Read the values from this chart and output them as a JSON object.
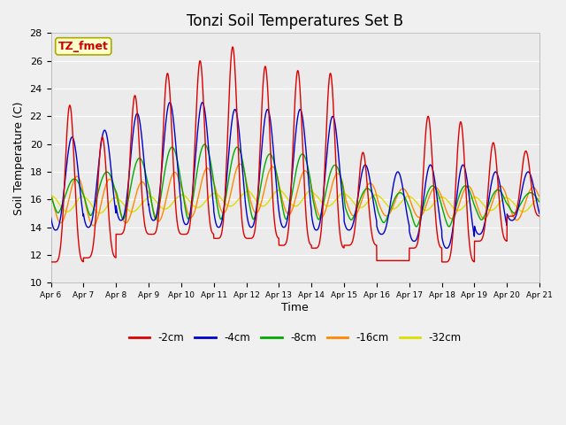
{
  "title": "Tonzi Soil Temperatures Set B",
  "xlabel": "Time",
  "ylabel": "Soil Temperature (C)",
  "ylim": [
    10,
    28
  ],
  "background_color": "#ebebeb",
  "fig_color": "#f0f0f0",
  "annotation_text": "TZ_fmet",
  "annotation_bg": "#ffffcc",
  "annotation_border": "#aaaa00",
  "annotation_text_color": "#cc0000",
  "series_colors": {
    "-2cm": "#dd0000",
    "-4cm": "#0000cc",
    "-8cm": "#00aa00",
    "-16cm": "#ff8800",
    "-32cm": "#dddd00"
  },
  "x_tick_labels": [
    "Apr 6",
    "Apr 7",
    "Apr 8",
    "Apr 9",
    "Apr 10",
    "Apr 11",
    "Apr 12",
    "Apr 13",
    "Apr 14",
    "Apr 15",
    "Apr 16",
    "Apr 17",
    "Apr 18",
    "Apr 19",
    "Apr 20",
    "Apr 21"
  ],
  "legend_labels": [
    "-2cm",
    "-4cm",
    "-8cm",
    "-16cm",
    "-32cm"
  ],
  "peak_heights_2cm": [
    22.8,
    20.5,
    23.5,
    25.1,
    26.0,
    27.0,
    25.6,
    25.3,
    25.1,
    19.4,
    11.6,
    22.0,
    21.6,
    20.1,
    19.5
  ],
  "trough_2cm": [
    11.5,
    11.8,
    13.5,
    13.5,
    13.5,
    13.2,
    13.2,
    12.7,
    12.5,
    12.7,
    11.6,
    12.5,
    11.5,
    13.0,
    14.8
  ],
  "peak_heights_4cm": [
    20.5,
    21.0,
    22.2,
    23.0,
    23.0,
    22.5,
    22.5,
    22.5,
    22.0,
    18.5,
    18.0,
    18.5,
    18.5,
    18.0,
    18.0
  ],
  "trough_4cm": [
    13.8,
    14.0,
    14.5,
    14.5,
    14.2,
    14.0,
    14.0,
    14.0,
    13.8,
    13.8,
    13.5,
    13.0,
    12.5,
    13.5,
    14.5
  ],
  "peak_heights_8cm": [
    17.5,
    18.0,
    19.0,
    19.8,
    20.0,
    19.8,
    19.3,
    19.3,
    18.5,
    16.8,
    16.5,
    17.0,
    17.0,
    16.7,
    16.5
  ],
  "trough_8cm": [
    15.0,
    14.8,
    14.5,
    14.5,
    14.5,
    14.5,
    14.5,
    14.5,
    14.5,
    14.5,
    14.3,
    14.0,
    14.0,
    14.5,
    15.0
  ],
  "mean_16cm": 16.5,
  "amp_16cm": 1.3,
  "phase_16cm": 0.3,
  "mean_32cm": 15.8,
  "amp_32cm": 0.5,
  "phase_32cm": 0.5
}
